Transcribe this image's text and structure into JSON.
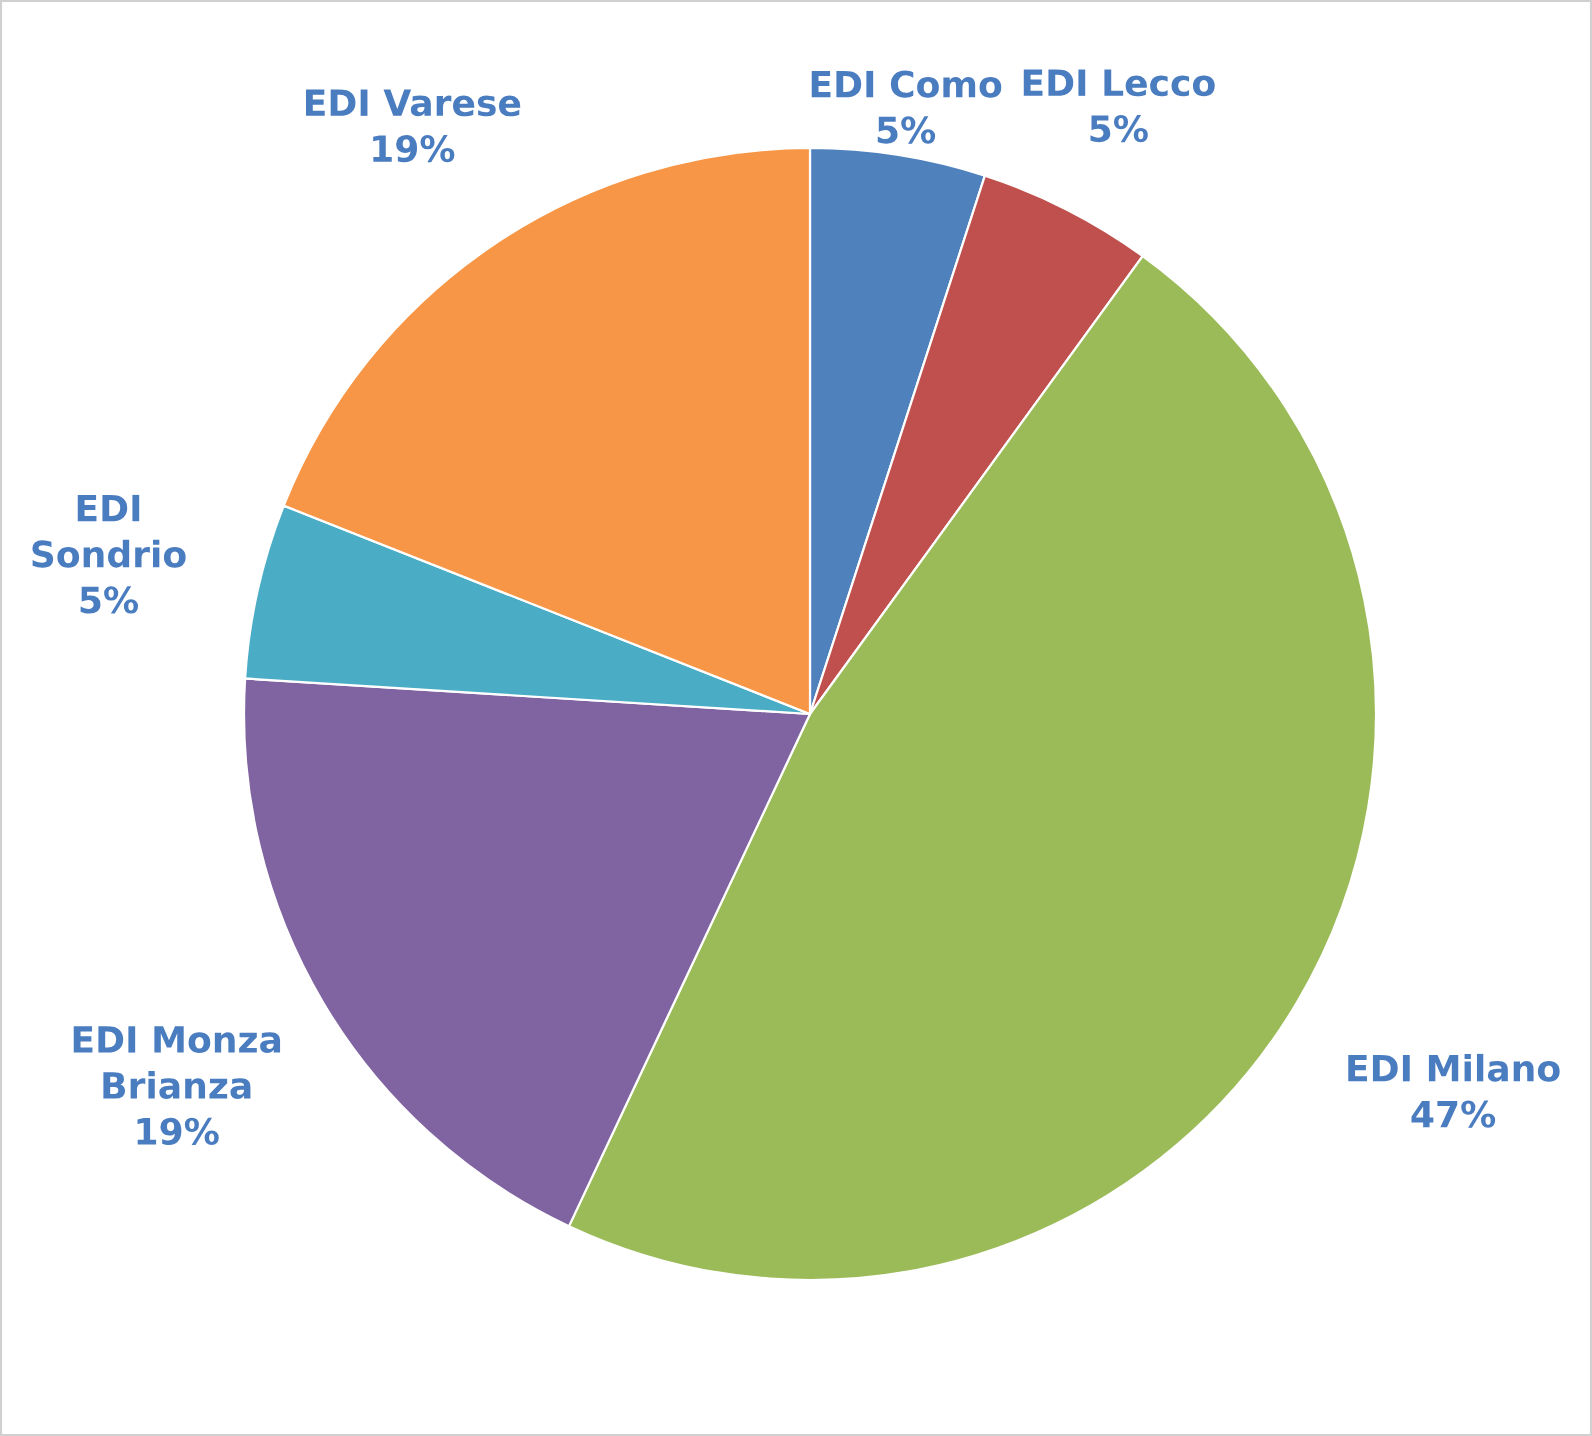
{
  "chart_data": {
    "type": "pie",
    "categories": [
      "EDI Como",
      "EDI Lecco",
      "EDI Milano",
      "EDI Monza\nBrianza",
      "EDI\nSondrio",
      "EDI Varese"
    ],
    "values": [
      5,
      5,
      47,
      19,
      5,
      19
    ],
    "value_labels": [
      "5%",
      "5%",
      "47%",
      "19%",
      "5%",
      "19%"
    ],
    "colors": [
      "#4f81bd",
      "#c0504d",
      "#9bbb59",
      "#8064a2",
      "#4bacc6",
      "#f79646"
    ],
    "legend": false
  }
}
